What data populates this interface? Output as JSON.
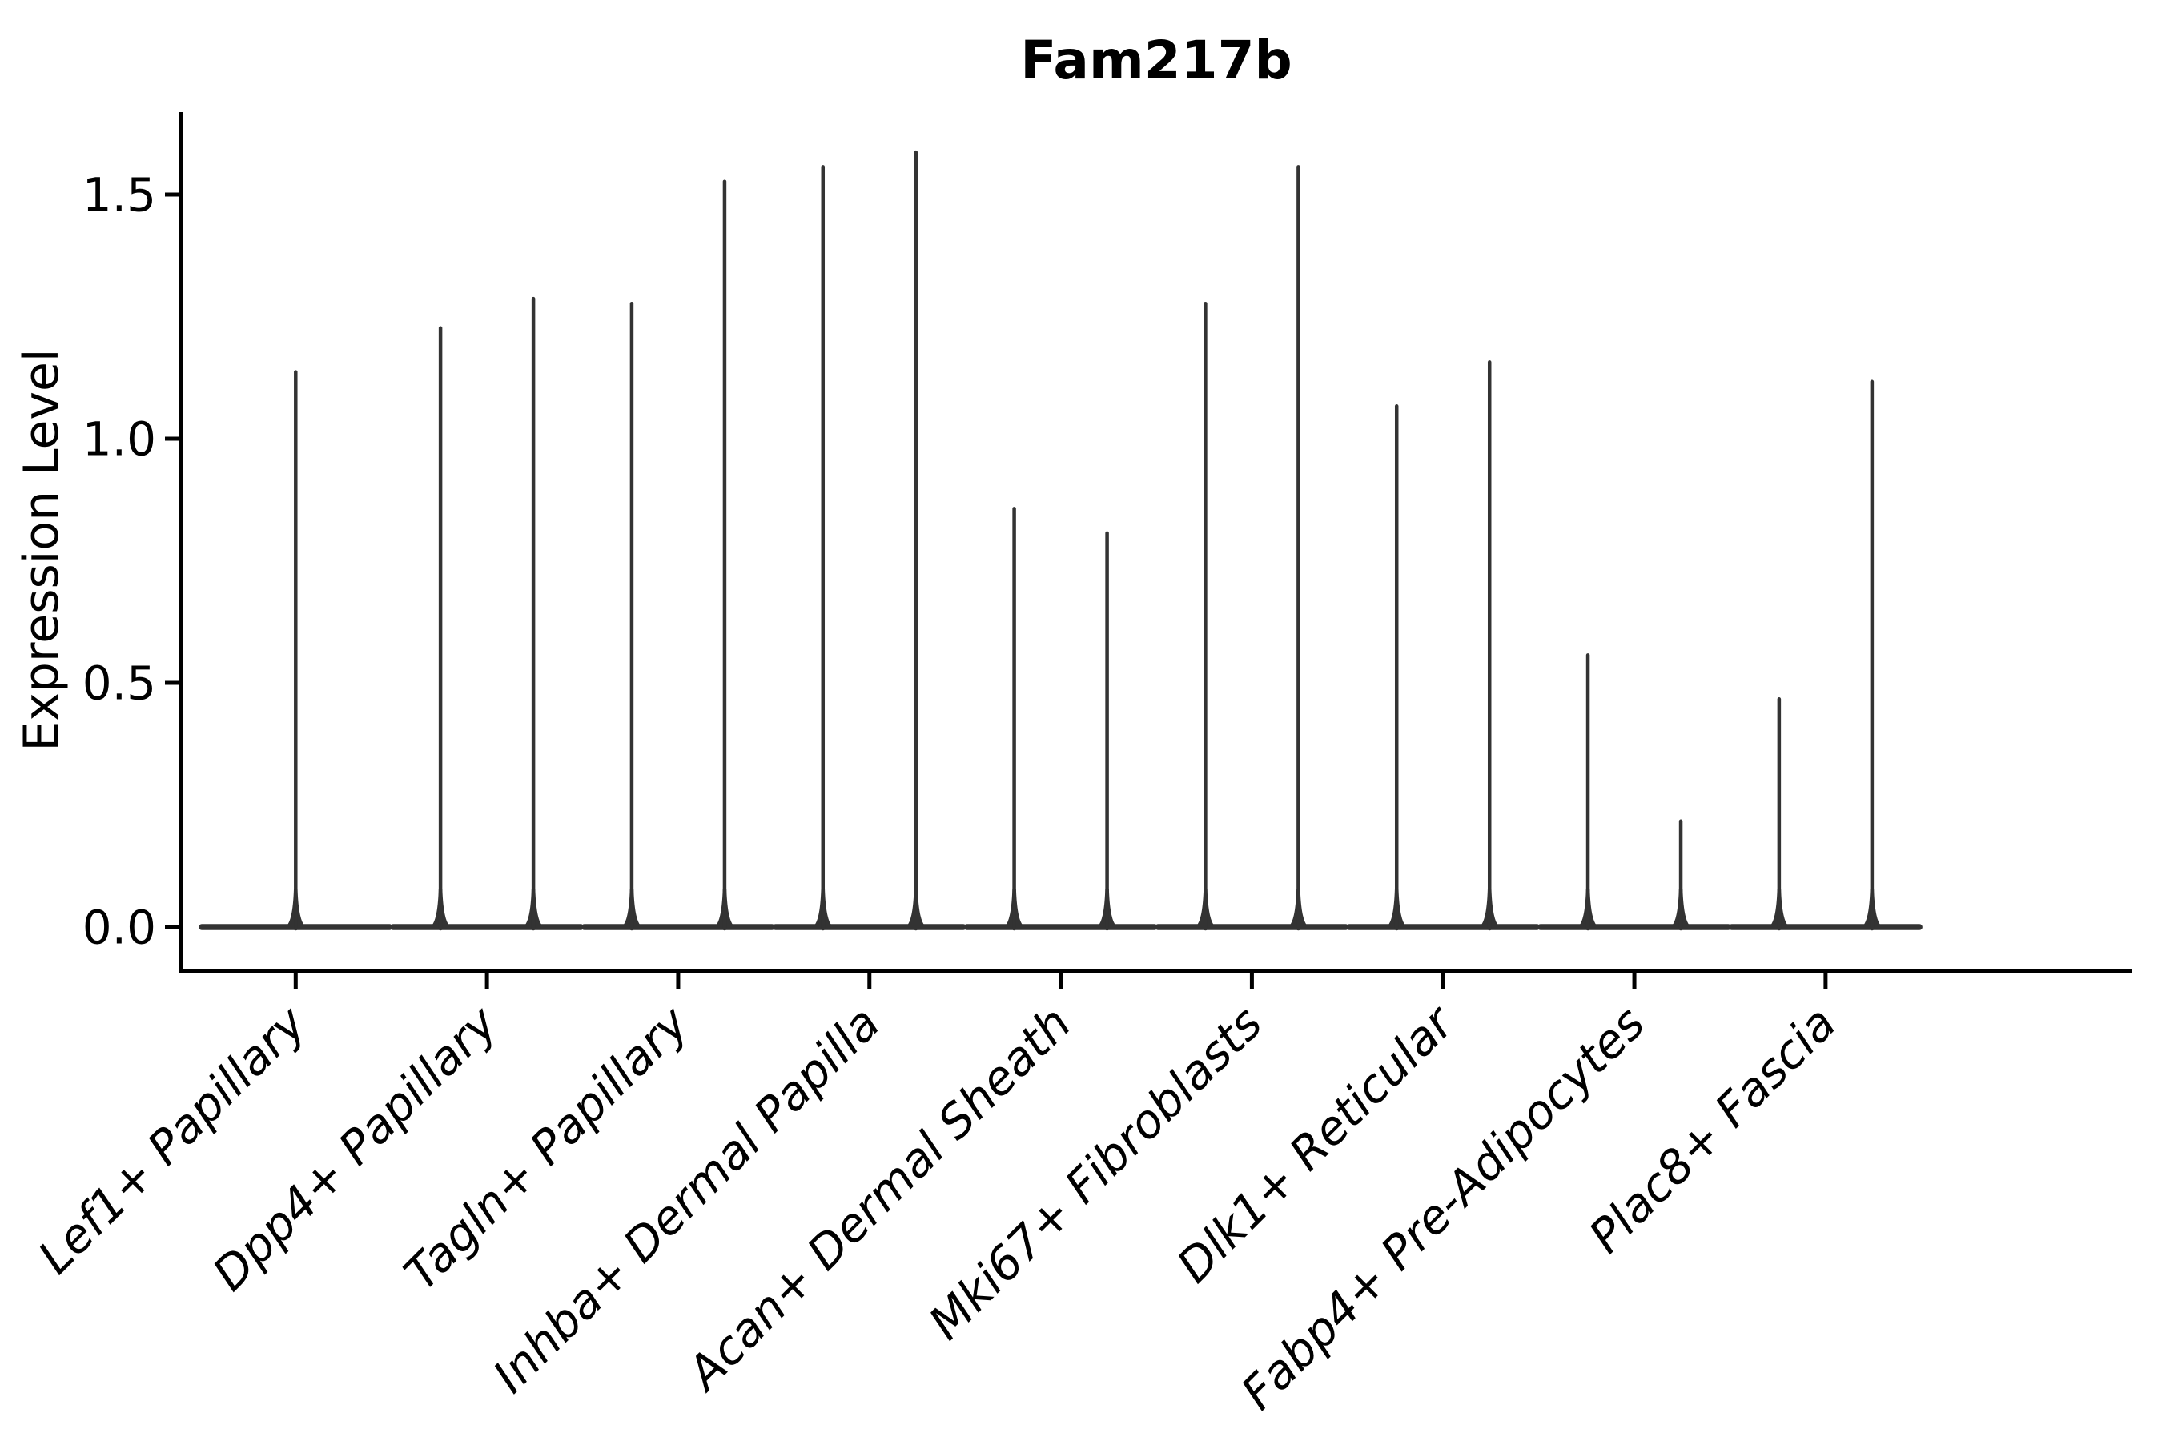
{
  "chart_data": {
    "type": "violin",
    "title": "Fam217b",
    "xlabel": "",
    "ylabel": "Expression Level",
    "categories": [
      "Lef1+ Papillary",
      "Dpp4+ Papillary",
      "Tagln+ Papillary",
      "Inhba+ Dermal Papilla",
      "Acan+ Dermal Sheath",
      "Mki67+ Fibroblasts",
      "Dlk1+ Reticular",
      "Fabp4+ Pre-Adipocytes",
      "Plac8+ Fascia"
    ],
    "series": [
      {
        "category": "Lef1+ Papillary",
        "violin_maxima": [
          1.14
        ]
      },
      {
        "category": "Dpp4+ Papillary",
        "violin_maxima": [
          1.23,
          1.29
        ]
      },
      {
        "category": "Tagln+ Papillary",
        "violin_maxima": [
          1.28,
          1.53
        ]
      },
      {
        "category": "Inhba+ Dermal Papilla",
        "violin_maxima": [
          1.56,
          1.59
        ]
      },
      {
        "category": "Acan+ Dermal Sheath",
        "violin_maxima": [
          0.86,
          0.81
        ]
      },
      {
        "category": "Mki67+ Fibroblasts",
        "violin_maxima": [
          1.28,
          1.56
        ]
      },
      {
        "category": "Dlk1+ Reticular",
        "violin_maxima": [
          1.07,
          1.16
        ]
      },
      {
        "category": "Fabp4+ Pre-Adipocytes",
        "violin_maxima": [
          0.56,
          0.22
        ]
      },
      {
        "category": "Plac8+ Fascia",
        "violin_maxima": [
          0.47,
          1.12
        ]
      }
    ],
    "yticks": [
      "0.0",
      "0.5",
      "1.0",
      "1.5"
    ],
    "ytick_values": [
      0.0,
      0.5,
      1.0,
      1.5
    ],
    "ylim": [
      -0.09,
      1.67
    ],
    "grid": false,
    "legend": false,
    "description": "Violin plot of single-cell gene expression; density mass concentrated at 0 forming wide flat bases, with razor-thin density spikes rising to each violin's maximum expression value; one or two violins per category."
  },
  "colors": {
    "background": "#ffffff",
    "axis": "#000000",
    "text": "#000000",
    "violin": "#333333"
  }
}
